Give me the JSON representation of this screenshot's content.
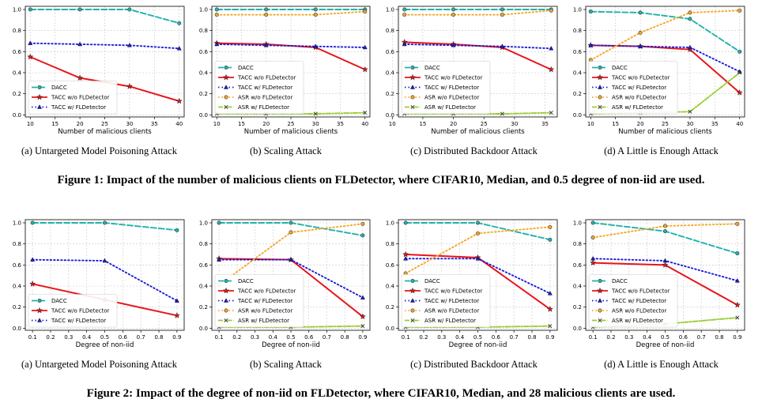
{
  "figures": [
    {
      "caption": "Figure 1: Impact of the number of malicious clients on FLDetector, where CIFAR10, Median, and 0.5 degree of non-iid are used.",
      "subcaptions": [
        "(a)  Untargeted Model Poisoning Attack",
        "(b)  Scaling Attack",
        "(c)  Distributed Backdoor Attack",
        "(d)  A Little is Enough Attack"
      ]
    },
    {
      "caption": "Figure 2: Impact of the degree of non-iid on FLDetector, where CIFAR10, Median, and 28 malicious clients are used.",
      "subcaptions": [
        "(a)  Untargeted Model Poisoning Attack",
        "(b)  Scaling Attack",
        "(c)  Distributed Backdoor Attack",
        "(d)  A Little is Enough Attack"
      ]
    }
  ],
  "series_styles": {
    "DACC": {
      "color": "#20b2aa",
      "dash": "7,3",
      "marker": "circle"
    },
    "TACC w/o FLDetector": {
      "color": "#e8141a",
      "dash": "",
      "marker": "star"
    },
    "TACC w/ FLDetector": {
      "color": "#1c1cd6",
      "dash": "1.5,3",
      "marker": "triangle"
    },
    "ASR w/o FLDetector": {
      "color": "#f5a623",
      "dash": "1.5,3",
      "marker": "circle"
    },
    "ASR w/ FLDetector": {
      "color": "#9acd32",
      "dash": "6,2,1.5,2",
      "marker": "x"
    }
  },
  "chart_data": [
    {
      "type": "line",
      "xlabel": "Number of malicious clients",
      "x": [
        10,
        20,
        30,
        40
      ],
      "xlim": [
        9,
        41
      ],
      "xticks": [
        10,
        15,
        20,
        25,
        30,
        35,
        40
      ],
      "ylim": [
        -0.02,
        1.03
      ],
      "yticks": [
        "0.0",
        "0.2",
        "0.4",
        "0.6",
        "0.8",
        "1.0"
      ],
      "grid": true,
      "legend": "bottom-left",
      "series": [
        {
          "name": "DACC",
          "values": [
            1.0,
            1.0,
            1.0,
            0.87
          ]
        },
        {
          "name": "TACC w/o FLDetector",
          "values": [
            0.55,
            0.35,
            0.27,
            0.13
          ]
        },
        {
          "name": "TACC w/ FLDetector",
          "values": [
            0.68,
            0.67,
            0.66,
            0.63
          ]
        }
      ]
    },
    {
      "type": "line",
      "xlabel": "Number of malicious clients",
      "x": [
        10,
        20,
        30,
        40
      ],
      "xlim": [
        9,
        41
      ],
      "xticks": [
        10,
        15,
        20,
        25,
        30,
        35,
        40
      ],
      "ylim": [
        -0.02,
        1.03
      ],
      "yticks": [
        "0.0",
        "0.2",
        "0.4",
        "0.6",
        "0.8",
        "1.0"
      ],
      "grid": true,
      "legend": "bottom-left",
      "series": [
        {
          "name": "DACC",
          "values": [
            1.0,
            1.0,
            1.0,
            1.0
          ]
        },
        {
          "name": "TACC w/o FLDetector",
          "values": [
            0.68,
            0.67,
            0.64,
            0.43
          ]
        },
        {
          "name": "TACC w/ FLDetector",
          "values": [
            0.67,
            0.66,
            0.65,
            0.64
          ]
        },
        {
          "name": "ASR w/o FLDetector",
          "values": [
            0.95,
            0.95,
            0.95,
            0.98
          ]
        },
        {
          "name": "ASR w/ FLDetector",
          "values": [
            0.01,
            0.01,
            0.01,
            0.02
          ]
        }
      ]
    },
    {
      "type": "line",
      "xlabel": "Number of malicious clients",
      "x": [
        12,
        20,
        28,
        36
      ],
      "xlim": [
        11,
        37
      ],
      "xticks": [
        10,
        15,
        20,
        25,
        30,
        35
      ],
      "ylim": [
        -0.02,
        1.03
      ],
      "yticks": [
        "0.0",
        "0.2",
        "0.4",
        "0.6",
        "0.8",
        "1.0"
      ],
      "grid": true,
      "legend": "bottom-left",
      "series": [
        {
          "name": "DACC",
          "values": [
            1.0,
            1.0,
            1.0,
            1.0
          ]
        },
        {
          "name": "TACC w/o FLDetector",
          "values": [
            0.69,
            0.67,
            0.64,
            0.43
          ]
        },
        {
          "name": "TACC w/ FLDetector",
          "values": [
            0.67,
            0.66,
            0.65,
            0.63
          ]
        },
        {
          "name": "ASR w/o FLDetector",
          "values": [
            0.95,
            0.95,
            0.95,
            0.99
          ]
        },
        {
          "name": "ASR w/ FLDetector",
          "values": [
            0.01,
            0.01,
            0.01,
            0.02
          ]
        }
      ]
    },
    {
      "type": "line",
      "xlabel": "Number of malicious clients",
      "x": [
        10,
        20,
        30,
        40
      ],
      "xlim": [
        9,
        41
      ],
      "xticks": [
        10,
        15,
        20,
        25,
        30,
        35,
        40
      ],
      "ylim": [
        -0.02,
        1.03
      ],
      "yticks": [
        "0.0",
        "0.2",
        "0.4",
        "0.6",
        "0.8",
        "1.0"
      ],
      "grid": true,
      "legend": "bottom-left",
      "series": [
        {
          "name": "DACC",
          "values": [
            0.98,
            0.97,
            0.91,
            0.6
          ]
        },
        {
          "name": "TACC w/o FLDetector",
          "values": [
            0.66,
            0.65,
            0.62,
            0.21
          ]
        },
        {
          "name": "TACC w/ FLDetector",
          "values": [
            0.66,
            0.65,
            0.64,
            0.41
          ]
        },
        {
          "name": "ASR w/o FLDetector",
          "values": [
            0.52,
            0.78,
            0.97,
            0.99
          ]
        },
        {
          "name": "ASR w/ FLDetector",
          "values": [
            0.01,
            0.02,
            0.03,
            0.4
          ]
        }
      ]
    },
    {
      "type": "line",
      "xlabel": "Degree of non-iid",
      "x": [
        0.1,
        0.5,
        0.9
      ],
      "xlim": [
        0.06,
        0.94
      ],
      "xticks": [
        0.1,
        0.2,
        0.3,
        0.4,
        0.5,
        0.6,
        0.7,
        0.8,
        0.9
      ],
      "ylim": [
        -0.02,
        1.03
      ],
      "yticks": [
        "0.0",
        "0.2",
        "0.4",
        "0.6",
        "0.8",
        "1.0"
      ],
      "grid": true,
      "legend": "bottom-left",
      "series": [
        {
          "name": "DACC",
          "values": [
            1.0,
            1.0,
            0.93
          ]
        },
        {
          "name": "TACC w/o FLDetector",
          "values": [
            0.42,
            0.27,
            0.12
          ]
        },
        {
          "name": "TACC w/ FLDetector",
          "values": [
            0.65,
            0.64,
            0.26
          ]
        }
      ]
    },
    {
      "type": "line",
      "xlabel": "Degree of non-iid",
      "x": [
        0.1,
        0.5,
        0.9
      ],
      "xlim": [
        0.06,
        0.94
      ],
      "xticks": [
        0.1,
        0.2,
        0.3,
        0.4,
        0.5,
        0.6,
        0.7,
        0.8,
        0.9
      ],
      "ylim": [
        -0.02,
        1.03
      ],
      "yticks": [
        "0.0",
        "0.2",
        "0.4",
        "0.6",
        "0.8",
        "1.0"
      ],
      "grid": true,
      "legend": "bottom-left",
      "series": [
        {
          "name": "DACC",
          "values": [
            1.0,
            1.0,
            0.88
          ]
        },
        {
          "name": "TACC w/o FLDetector",
          "values": [
            0.66,
            0.65,
            0.11
          ]
        },
        {
          "name": "TACC w/ FLDetector",
          "values": [
            0.65,
            0.65,
            0.29
          ]
        },
        {
          "name": "ASR w/o FLDetector",
          "values": [
            0.41,
            0.91,
            0.99
          ]
        },
        {
          "name": "ASR w/ FLDetector",
          "values": [
            0.01,
            0.01,
            0.02
          ]
        }
      ]
    },
    {
      "type": "line",
      "xlabel": "Degree of non-iid",
      "x": [
        0.1,
        0.5,
        0.9
      ],
      "xlim": [
        0.06,
        0.94
      ],
      "xticks": [
        0.1,
        0.2,
        0.3,
        0.4,
        0.5,
        0.6,
        0.7,
        0.8,
        0.9
      ],
      "ylim": [
        -0.02,
        1.03
      ],
      "yticks": [
        "0.0",
        "0.2",
        "0.4",
        "0.6",
        "0.8",
        "1.0"
      ],
      "grid": true,
      "legend": "bottom-left",
      "series": [
        {
          "name": "DACC",
          "values": [
            1.0,
            1.0,
            0.84
          ]
        },
        {
          "name": "TACC w/o FLDetector",
          "values": [
            0.7,
            0.67,
            0.18
          ]
        },
        {
          "name": "TACC w/ FLDetector",
          "values": [
            0.66,
            0.66,
            0.33
          ]
        },
        {
          "name": "ASR w/o FLDetector",
          "values": [
            0.52,
            0.9,
            0.96
          ]
        },
        {
          "name": "ASR w/ FLDetector",
          "values": [
            0.01,
            0.01,
            0.02
          ]
        }
      ]
    },
    {
      "type": "line",
      "xlabel": "Degree of non-iid",
      "x": [
        0.1,
        0.5,
        0.9
      ],
      "xlim": [
        0.06,
        0.94
      ],
      "xticks": [
        0.1,
        0.2,
        0.3,
        0.4,
        0.5,
        0.6,
        0.7,
        0.8,
        0.9
      ],
      "ylim": [
        -0.02,
        1.03
      ],
      "yticks": [
        "0.0",
        "0.2",
        "0.4",
        "0.6",
        "0.8",
        "1.0"
      ],
      "grid": true,
      "legend": "bottom-left",
      "series": [
        {
          "name": "DACC",
          "values": [
            1.0,
            0.92,
            0.71
          ]
        },
        {
          "name": "TACC w/o FLDetector",
          "values": [
            0.62,
            0.6,
            0.22
          ]
        },
        {
          "name": "TACC w/ FLDetector",
          "values": [
            0.66,
            0.64,
            0.45
          ]
        },
        {
          "name": "ASR w/o FLDetector",
          "values": [
            0.86,
            0.97,
            0.99
          ]
        },
        {
          "name": "ASR w/ FLDetector",
          "values": [
            0.01,
            0.04,
            0.1
          ]
        }
      ]
    }
  ]
}
